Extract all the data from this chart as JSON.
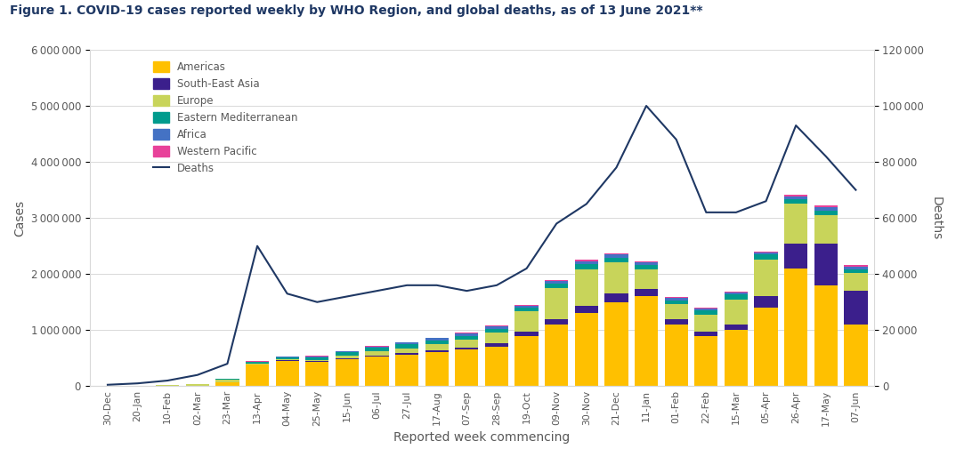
{
  "title": "Figure 1. COVID-19 cases reported weekly by WHO Region, and global deaths, as of 13 June 2021**",
  "xlabel": "Reported week commencing",
  "ylabel_left": "Cases",
  "ylabel_right": "Deaths",
  "xlabels": [
    "30-Dec",
    "20-Jan",
    "10-Feb",
    "02-Mar",
    "23-Mar",
    "13-Apr",
    "04-May",
    "25-May",
    "15-Jun",
    "06-Jul",
    "27-Jul",
    "17-Aug",
    "07-Sep",
    "28-Sep",
    "19-Oct",
    "09-Nov",
    "30-Nov",
    "21-Dec",
    "11-Jan",
    "01-Feb",
    "22-Feb",
    "15-Mar",
    "05-Apr",
    "26-Apr",
    "17-May",
    "07-Jun"
  ],
  "americas": [
    2000,
    3000,
    5000,
    10000,
    70000,
    380000,
    450000,
    440000,
    480000,
    530000,
    560000,
    600000,
    650000,
    700000,
    900000,
    1100000,
    1300000,
    1500000,
    1600000,
    1100000,
    900000,
    1000000,
    1400000,
    2100000,
    1800000,
    1100000
  ],
  "south_east_asia": [
    500,
    1000,
    2000,
    3000,
    5000,
    8000,
    12000,
    15000,
    18000,
    22000,
    28000,
    35000,
    45000,
    60000,
    80000,
    100000,
    130000,
    160000,
    140000,
    90000,
    80000,
    100000,
    200000,
    450000,
    750000,
    600000
  ],
  "europe": [
    2000,
    5000,
    10000,
    20000,
    40000,
    20000,
    15000,
    12000,
    50000,
    70000,
    90000,
    120000,
    140000,
    200000,
    350000,
    550000,
    650000,
    550000,
    350000,
    280000,
    300000,
    450000,
    650000,
    700000,
    500000,
    320000
  ],
  "eastern_mediterranean": [
    200,
    500,
    1000,
    3000,
    10000,
    25000,
    40000,
    50000,
    55000,
    60000,
    65000,
    65000,
    65000,
    60000,
    65000,
    75000,
    90000,
    85000,
    75000,
    65000,
    75000,
    90000,
    100000,
    90000,
    80000,
    65000
  ],
  "africa": [
    100,
    200,
    500,
    1000,
    4000,
    8000,
    12000,
    15000,
    18000,
    25000,
    35000,
    40000,
    45000,
    45000,
    45000,
    50000,
    60000,
    55000,
    45000,
    35000,
    28000,
    28000,
    35000,
    45000,
    55000,
    48000
  ],
  "western_pacific": [
    200,
    500,
    1000,
    1500,
    2000,
    3000,
    4000,
    5000,
    6000,
    7000,
    8000,
    9000,
    11000,
    13000,
    15000,
    18000,
    22000,
    22000,
    18000,
    15000,
    15000,
    18000,
    22000,
    28000,
    32000,
    28000
  ],
  "deaths": [
    500,
    1000,
    2000,
    4000,
    8000,
    50000,
    33000,
    30000,
    32000,
    34000,
    36000,
    36000,
    34000,
    36000,
    42000,
    58000,
    65000,
    78000,
    100000,
    88000,
    62000,
    62000,
    66000,
    93000,
    82000,
    70000
  ],
  "colors": {
    "americas": "#FFC000",
    "south_east_asia": "#3B1F8C",
    "europe": "#C8D45A",
    "eastern_mediterranean": "#009B8D",
    "africa": "#4472C4",
    "western_pacific": "#E8429A"
  },
  "deaths_color": "#1F3864",
  "ylim_cases": [
    0,
    6000000
  ],
  "ylim_deaths": [
    0,
    120000
  ],
  "title_color": "#1F3864",
  "axis_color": "#595959",
  "grid_color": "#D9D9D9"
}
